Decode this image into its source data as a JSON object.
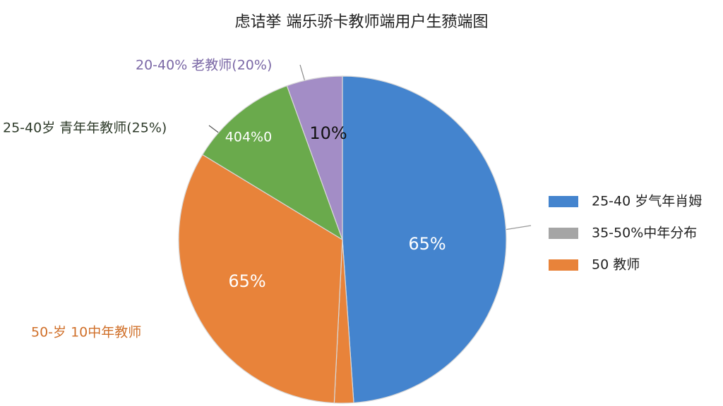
{
  "chart_data": {
    "type": "pie",
    "title": "虑诘挙 端乐骄卡教师端用户生豮端图",
    "values": [
      48.9,
      1.9,
      32.9,
      10.8,
      5.5
    ],
    "colors": [
      "#4484ce",
      "#e8833a",
      "#e8833a",
      "#6aaa4c",
      "#a38dc6"
    ],
    "annotations": [
      "65%",
      "65%",
      "404%0",
      "10%",
      "20-40% 老教师(20%)",
      "25-40岁 青年年教师(25%)",
      "50-岁 10中年教师"
    ],
    "legend": [
      {
        "name": "25-40 岁气年肖姆",
        "color": "#4484ce"
      },
      {
        "name": "35-50%中年分布",
        "color": "#a5a5a5"
      },
      {
        "name": "50 教师",
        "color": "#e8833a"
      }
    ]
  }
}
